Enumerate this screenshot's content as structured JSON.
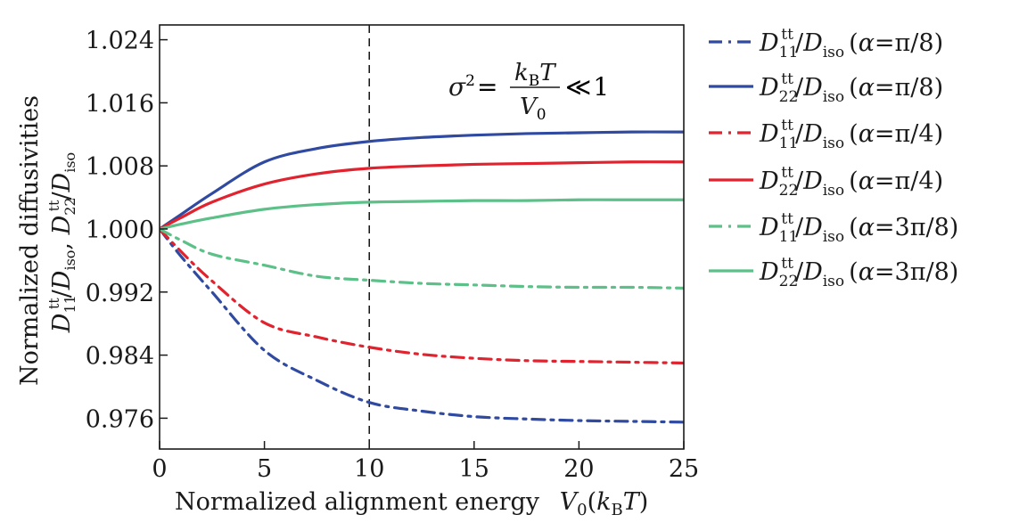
{
  "chart_data": {
    "type": "line",
    "title": "",
    "xlabel": "Normalized alignment energy  V0(kBT)",
    "xlabel_parts": {
      "text": "Normalized alignment energy",
      "var": "V",
      "var_sub": "0",
      "paren_open": "(",
      "k": "k",
      "k_sub": "B",
      "T": "T",
      "paren_close": ")"
    },
    "ylabel_line1": "Normalized diffusivities",
    "ylabel_line2": "D11tt/Diso, D22tt/Diso",
    "xlim": [
      0,
      25
    ],
    "ylim": [
      0.9705,
      1.0259
    ],
    "xticks": [
      0,
      5,
      10,
      15,
      20,
      25
    ],
    "xtick_labels": [
      "0",
      "5",
      "10",
      "15",
      "20",
      "25"
    ],
    "yticks": [
      0.976,
      0.984,
      0.992,
      1.0,
      1.008,
      1.016,
      1.024
    ],
    "ytick_labels": [
      "0.976",
      "0.984",
      "0.992",
      "1.000",
      "1.008",
      "1.016",
      "1.024"
    ],
    "grid": false,
    "legend_position": "outside-right",
    "vline": {
      "x": 10,
      "style": "dashed",
      "color": "#000000"
    },
    "annotation": {
      "text": "σ² = kBT / V0 ≪ 1",
      "lhs": "σ",
      "lhs_sup": "2",
      "eq": "=",
      "num_k": "k",
      "num_sub": "B",
      "num_T": "T",
      "den_V": "V",
      "den_sub": "0",
      "rel": "≪",
      "rhs": "1"
    },
    "x": [
      0,
      1,
      2.5,
      5,
      7.5,
      10,
      12.5,
      15,
      17.5,
      20,
      22.5,
      25
    ],
    "series": [
      {
        "name": "D11tt/Diso (α=π/8)",
        "sub": "11",
        "alpha": "π/8",
        "color": "#2f4aa0",
        "style": "dashdot",
        "values": [
          1.0,
          0.9966,
          0.992,
          0.9846,
          0.9808,
          0.978,
          0.9769,
          0.9762,
          0.9759,
          0.9757,
          0.9756,
          0.9755
        ]
      },
      {
        "name": "D22tt/Diso (α=π/8)",
        "sub": "22",
        "alpha": "π/8",
        "color": "#2f4aa0",
        "style": "solid",
        "values": [
          1.0,
          1.0018,
          1.0045,
          1.0085,
          1.0102,
          1.0111,
          1.0116,
          1.0119,
          1.0121,
          1.0122,
          1.0123,
          1.0123
        ]
      },
      {
        "name": "D11tt/Diso (α=π/4)",
        "sub": "11",
        "alpha": "π/4",
        "color": "#e0232e",
        "style": "dashdot",
        "values": [
          1.0,
          0.9972,
          0.9934,
          0.9881,
          0.9863,
          0.985,
          0.9841,
          0.9836,
          0.9833,
          0.9832,
          0.9831,
          0.983
        ]
      },
      {
        "name": "D22tt/Diso (α=π/4)",
        "sub": "22",
        "alpha": "π/4",
        "color": "#e0232e",
        "style": "solid",
        "values": [
          1.0,
          1.0014,
          1.0034,
          1.0057,
          1.007,
          1.0077,
          1.008,
          1.0082,
          1.0083,
          1.0084,
          1.0085,
          1.0085
        ]
      },
      {
        "name": "D11tt/Diso (α=3π/8)",
        "sub": "11",
        "alpha": "3π/8",
        "color": "#5cc088",
        "style": "dashdot",
        "values": [
          1.0,
          0.9986,
          0.9968,
          0.9954,
          0.994,
          0.9935,
          0.9931,
          0.9929,
          0.9927,
          0.9926,
          0.9926,
          0.9925
        ]
      },
      {
        "name": "D22tt/Diso (α=3π/8)",
        "sub": "22",
        "alpha": "3π/8",
        "color": "#5cc088",
        "style": "solid",
        "values": [
          1.0,
          1.0006,
          1.0014,
          1.0025,
          1.0031,
          1.0034,
          1.0035,
          1.0036,
          1.0036,
          1.0037,
          1.0037,
          1.0037
        ]
      }
    ]
  }
}
